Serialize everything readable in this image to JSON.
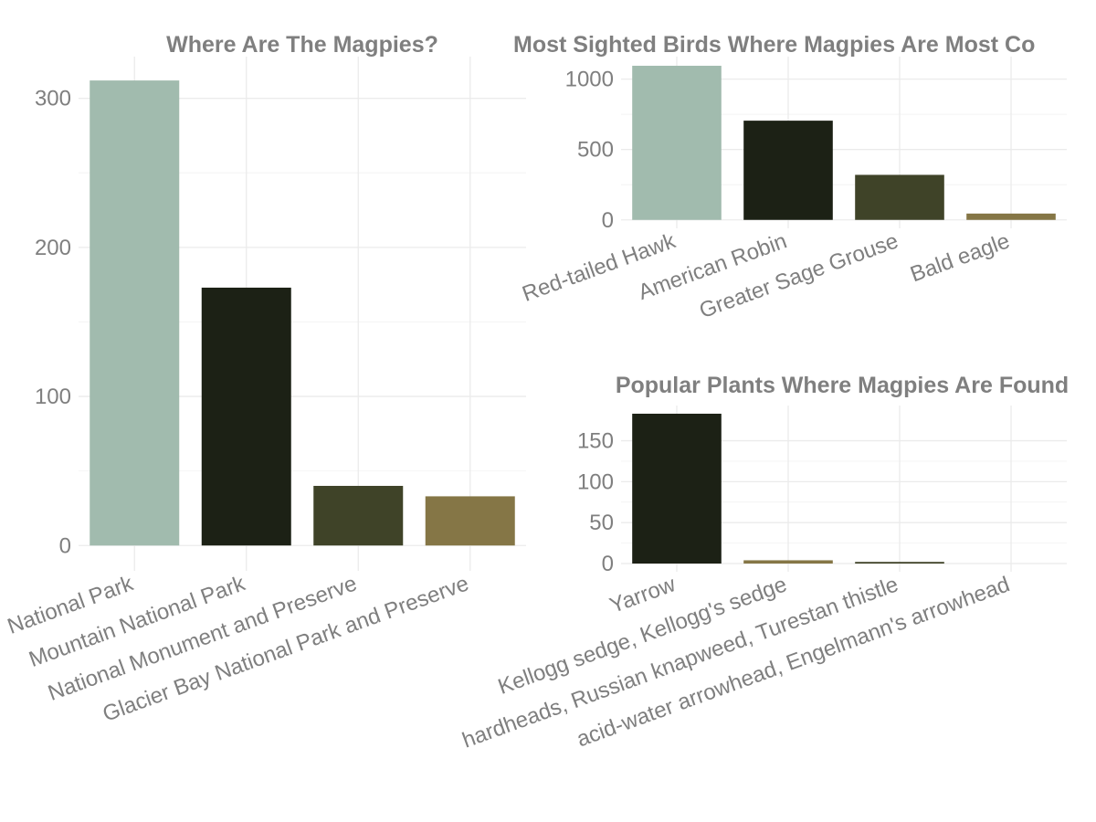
{
  "chart_data": [
    {
      "type": "bar",
      "title": "Where Are The Magpies?",
      "categories": [
        "Yellowstone National Park",
        "Rocky Mountain National Park",
        "Craters of the Moon National Monument and Preserve",
        "Glacier Bay National Park and Preserve"
      ],
      "category_labels": [
        "National Park",
        "Mountain National Park",
        "National Monument and Preserve",
        "Glacier Bay National Park and Preserve"
      ],
      "values": [
        312,
        173,
        40,
        33
      ],
      "colors": [
        "#a1bbae",
        "#1c2115",
        "#3f4328",
        "#857646"
      ],
      "yticks": [
        0,
        100,
        200,
        300
      ],
      "ylim": [
        -17,
        328
      ],
      "xlabel": "",
      "ylabel": "",
      "grid": true
    },
    {
      "type": "bar",
      "title": "Most Sighted Birds Where Magpies Are Most Common",
      "title_shown": "Most Sighted Birds Where Magpies Are Most Co",
      "categories": [
        "Red-tailed Hawk",
        "American Robin",
        "Greater Sage Grouse",
        "Bald eagle"
      ],
      "values": [
        1095,
        705,
        320,
        45
      ],
      "colors": [
        "#a1bbae",
        "#1c2115",
        "#3f4328",
        "#857646"
      ],
      "yticks": [
        0,
        500,
        1000
      ],
      "ylim": [
        -60,
        1160
      ],
      "xlabel": "",
      "ylabel": "",
      "grid": true
    },
    {
      "type": "bar",
      "title": "Popular Plants Where Magpies Are Found",
      "categories": [
        "Yarrow",
        "Kellogg sedge, Kellogg's sedge",
        "hardheads, Russian knapweed, Turestan thistle",
        "acid-water arrowhead, Engelmann's arrowhead"
      ],
      "values": [
        183,
        4,
        2,
        0
      ],
      "colors": [
        "#1c2115",
        "#857646",
        "#3f4328",
        "#a1bbae"
      ],
      "yticks": [
        0,
        50,
        100,
        150
      ],
      "ylim": [
        -10,
        193
      ],
      "xlabel": "",
      "ylabel": "",
      "grid": true
    }
  ]
}
